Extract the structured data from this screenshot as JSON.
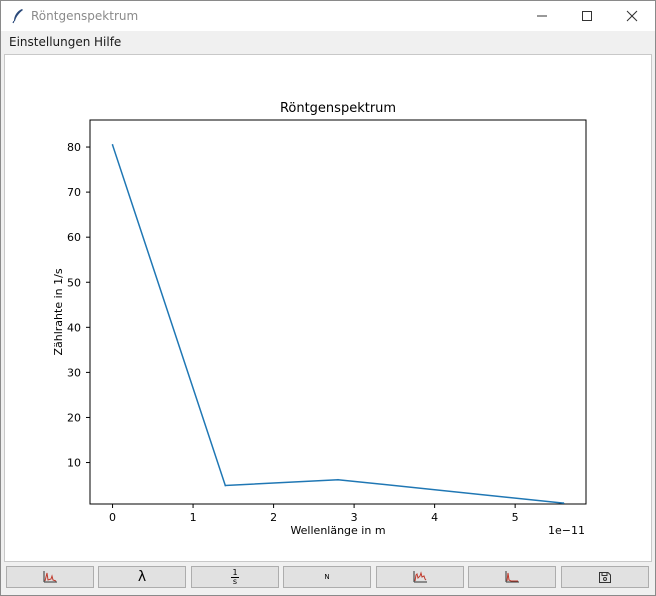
{
  "window": {
    "title": "Röntgenspektrum"
  },
  "menu": {
    "items": [
      "Einstellungen",
      "Hilfe"
    ]
  },
  "toolbar": {
    "lambda_label": "λ",
    "inverse_num": "1",
    "inverse_den": "s",
    "n_label": "N"
  },
  "colors": {
    "line": "#1f77b4",
    "icon_red": "#c0392b"
  },
  "chart_data": {
    "type": "line",
    "title": "Röntgenspektrum",
    "xlabel": "Wellenlänge in m",
    "ylabel": "Zählrahte in 1/s",
    "x_offset_label": "1e−11",
    "x": [
      0,
      1.4,
      2.8,
      5.6
    ],
    "series": [
      {
        "values": [
          80.5,
          4.9,
          6.2,
          1.0
        ]
      }
    ],
    "xlim": [
      -0.28,
      5.88
    ],
    "ylim": [
      0.8,
      86.0
    ],
    "xticks": [
      0,
      1,
      2,
      3,
      4,
      5
    ],
    "xtick_labels": [
      "0",
      "1",
      "2",
      "3",
      "4",
      "5"
    ],
    "yticks": [
      10,
      20,
      30,
      40,
      50,
      60,
      70,
      80
    ],
    "ytick_labels": [
      "10",
      "20",
      "30",
      "40",
      "50",
      "60",
      "70",
      "80"
    ],
    "grid": false
  }
}
